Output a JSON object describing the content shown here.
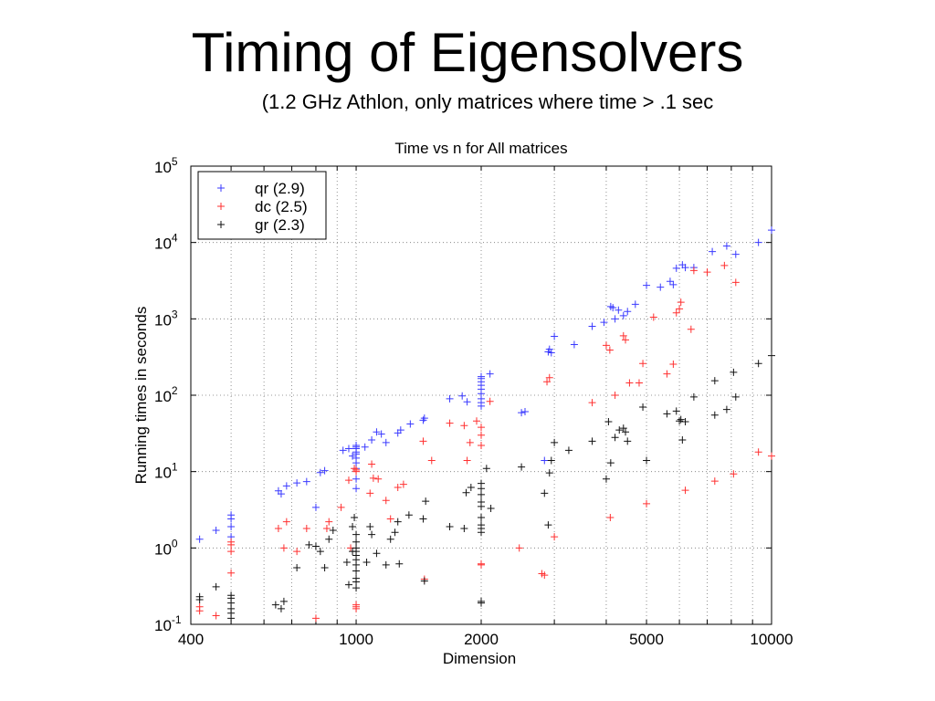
{
  "slide": {
    "title": "Timing of Eigensolvers",
    "subtitle": "(1.2 GHz Athlon, only matrices where time > .1 sec"
  },
  "chart_data": {
    "type": "scatter",
    "title": "Time vs n for All matrices",
    "xlabel": "Dimension",
    "ylabel": "Running times in seconds",
    "xscale": "log",
    "yscale": "log",
    "xlim": [
      400,
      10000
    ],
    "ylim": [
      0.1,
      100000
    ],
    "grid": true,
    "legend_position": "top-left",
    "x_ticks": [
      {
        "value": 400,
        "label": "400"
      },
      {
        "value": 1000,
        "label": "1000"
      },
      {
        "value": 2000,
        "label": "2000"
      },
      {
        "value": 5000,
        "label": "5000"
      },
      {
        "value": 10000,
        "label": "10000"
      }
    ],
    "y_ticks": [
      {
        "value": 0.1,
        "base": "10",
        "exp": "-1"
      },
      {
        "value": 1,
        "base": "10",
        "exp": "0"
      },
      {
        "value": 10,
        "base": "10",
        "exp": "1"
      },
      {
        "value": 100,
        "base": "10",
        "exp": "2"
      },
      {
        "value": 1000,
        "base": "10",
        "exp": "3"
      },
      {
        "value": 10000,
        "base": "10",
        "exp": "4"
      },
      {
        "value": 100000,
        "base": "10",
        "exp": "5"
      }
    ],
    "series": [
      {
        "name": "qr (2.9)",
        "color": "#3a3aff",
        "points": [
          [
            420,
            1.3
          ],
          [
            460,
            1.7
          ],
          [
            500,
            2.7
          ],
          [
            500,
            2.4
          ],
          [
            500,
            1.9
          ],
          [
            500,
            1.4
          ],
          [
            650,
            5.6
          ],
          [
            660,
            5.1
          ],
          [
            680,
            6.5
          ],
          [
            720,
            7.1
          ],
          [
            760,
            7.4
          ],
          [
            800,
            3.4
          ],
          [
            820,
            9.7
          ],
          [
            840,
            10.3
          ],
          [
            930,
            19
          ],
          [
            960,
            20
          ],
          [
            980,
            16
          ],
          [
            1000,
            22
          ],
          [
            1000,
            21
          ],
          [
            1000,
            20
          ],
          [
            1000,
            18
          ],
          [
            1000,
            17
          ],
          [
            1000,
            15
          ],
          [
            1000,
            13
          ],
          [
            1000,
            11
          ],
          [
            1000,
            8
          ],
          [
            1000,
            6
          ],
          [
            1050,
            21
          ],
          [
            1090,
            26
          ],
          [
            1120,
            33
          ],
          [
            1150,
            31
          ],
          [
            1180,
            24
          ],
          [
            1260,
            32
          ],
          [
            1280,
            35
          ],
          [
            1350,
            42
          ],
          [
            1450,
            47
          ],
          [
            1460,
            50
          ],
          [
            1680,
            90
          ],
          [
            1800,
            98
          ],
          [
            1850,
            82
          ],
          [
            2000,
            175
          ],
          [
            2000,
            165
          ],
          [
            2000,
            150
          ],
          [
            2000,
            135
          ],
          [
            2000,
            120
          ],
          [
            2000,
            105
          ],
          [
            2000,
            90
          ],
          [
            2000,
            80
          ],
          [
            2000,
            72
          ],
          [
            2100,
            190
          ],
          [
            2500,
            59
          ],
          [
            2550,
            61
          ],
          [
            2840,
            14
          ],
          [
            2900,
            370
          ],
          [
            2920,
            400
          ],
          [
            2950,
            360
          ],
          [
            3000,
            590
          ],
          [
            3350,
            460
          ],
          [
            3700,
            800
          ],
          [
            3950,
            900
          ],
          [
            4100,
            1450
          ],
          [
            4150,
            1400
          ],
          [
            4200,
            1000
          ],
          [
            4280,
            1300
          ],
          [
            4400,
            1100
          ],
          [
            4500,
            1250
          ],
          [
            4700,
            1550
          ],
          [
            5000,
            2750
          ],
          [
            5400,
            2600
          ],
          [
            5700,
            3100
          ],
          [
            5800,
            2800
          ],
          [
            5900,
            4600
          ],
          [
            6100,
            5100
          ],
          [
            6200,
            4700
          ],
          [
            6500,
            4700
          ],
          [
            7200,
            7600
          ],
          [
            7800,
            9000
          ],
          [
            8200,
            7000
          ],
          [
            9300,
            10000
          ],
          [
            10000,
            14500
          ]
        ]
      },
      {
        "name": "dc (2.5)",
        "color": "#ff3030",
        "points": [
          [
            420,
            0.15
          ],
          [
            420,
            0.17
          ],
          [
            460,
            0.13
          ],
          [
            500,
            1.2
          ],
          [
            500,
            1.1
          ],
          [
            500,
            0.9
          ],
          [
            500,
            0.47
          ],
          [
            650,
            1.8
          ],
          [
            670,
            1.0
          ],
          [
            680,
            2.2
          ],
          [
            720,
            0.9
          ],
          [
            760,
            1.8
          ],
          [
            800,
            0.12
          ],
          [
            850,
            1.8
          ],
          [
            860,
            2.2
          ],
          [
            920,
            3.4
          ],
          [
            960,
            7.7
          ],
          [
            970,
            1.0
          ],
          [
            990,
            11
          ],
          [
            1000,
            10
          ],
          [
            1000,
            10.5
          ],
          [
            1000,
            0.18
          ],
          [
            1000,
            0.17
          ],
          [
            1000,
            0.16
          ],
          [
            1080,
            5.2
          ],
          [
            1090,
            12.5
          ],
          [
            1100,
            8.2
          ],
          [
            1130,
            8
          ],
          [
            1180,
            4.2
          ],
          [
            1210,
            2.4
          ],
          [
            1260,
            6.2
          ],
          [
            1300,
            6.8
          ],
          [
            1450,
            25
          ],
          [
            1460,
            0.39
          ],
          [
            1520,
            14
          ],
          [
            1680,
            43
          ],
          [
            1820,
            40
          ],
          [
            1850,
            14
          ],
          [
            1880,
            24
          ],
          [
            1950,
            46
          ],
          [
            2000,
            38
          ],
          [
            2000,
            30
          ],
          [
            2000,
            22
          ],
          [
            2000,
            0.62
          ],
          [
            2000,
            0.6
          ],
          [
            2100,
            83
          ],
          [
            2470,
            1.0
          ],
          [
            2800,
            0.46
          ],
          [
            2840,
            0.44
          ],
          [
            2880,
            150
          ],
          [
            2920,
            170
          ],
          [
            3000,
            1.4
          ],
          [
            3700,
            80
          ],
          [
            4000,
            450
          ],
          [
            4080,
            390
          ],
          [
            4090,
            2.5
          ],
          [
            4200,
            100
          ],
          [
            4400,
            600
          ],
          [
            4450,
            530
          ],
          [
            4550,
            145
          ],
          [
            4800,
            145
          ],
          [
            4900,
            260
          ],
          [
            5000,
            3.8
          ],
          [
            5200,
            1050
          ],
          [
            5600,
            190
          ],
          [
            5800,
            255
          ],
          [
            5900,
            1200
          ],
          [
            6000,
            1350
          ],
          [
            6050,
            1650
          ],
          [
            6200,
            5.7
          ],
          [
            6400,
            730
          ],
          [
            6500,
            4300
          ],
          [
            7000,
            4100
          ],
          [
            7300,
            7.5
          ],
          [
            7700,
            5000
          ],
          [
            8100,
            9.3
          ],
          [
            8200,
            3000
          ],
          [
            9300,
            18
          ],
          [
            10000,
            16
          ]
        ]
      },
      {
        "name": "gr (2.3)",
        "color": "#111111",
        "points": [
          [
            420,
            0.23
          ],
          [
            420,
            0.21
          ],
          [
            460,
            0.31
          ],
          [
            500,
            0.24
          ],
          [
            500,
            0.22
          ],
          [
            500,
            0.19
          ],
          [
            500,
            0.16
          ],
          [
            500,
            0.14
          ],
          [
            500,
            0.12
          ],
          [
            640,
            0.18
          ],
          [
            660,
            0.16
          ],
          [
            670,
            0.2
          ],
          [
            720,
            0.55
          ],
          [
            770,
            1.1
          ],
          [
            800,
            1.05
          ],
          [
            820,
            0.9
          ],
          [
            840,
            0.55
          ],
          [
            860,
            1.3
          ],
          [
            880,
            1.7
          ],
          [
            950,
            0.65
          ],
          [
            960,
            0.33
          ],
          [
            980,
            0.9
          ],
          [
            980,
            1.9
          ],
          [
            990,
            2.5
          ],
          [
            1000,
            1.5
          ],
          [
            1000,
            1.2
          ],
          [
            1000,
            1.0
          ],
          [
            1000,
            0.9
          ],
          [
            1000,
            0.8
          ],
          [
            1000,
            0.7
          ],
          [
            1000,
            0.6
          ],
          [
            1000,
            0.5
          ],
          [
            1000,
            0.4
          ],
          [
            1000,
            0.36
          ],
          [
            1000,
            0.3
          ],
          [
            1060,
            0.65
          ],
          [
            1080,
            1.9
          ],
          [
            1090,
            1.5
          ],
          [
            1120,
            0.85
          ],
          [
            1180,
            0.6
          ],
          [
            1210,
            1.3
          ],
          [
            1240,
            1.6
          ],
          [
            1260,
            2.2
          ],
          [
            1270,
            0.62
          ],
          [
            1340,
            2.7
          ],
          [
            1450,
            2.4
          ],
          [
            1460,
            0.37
          ],
          [
            1470,
            4.1
          ],
          [
            1680,
            1.9
          ],
          [
            1820,
            1.8
          ],
          [
            1840,
            5.3
          ],
          [
            1890,
            6.2
          ],
          [
            2000,
            7
          ],
          [
            2000,
            6
          ],
          [
            2000,
            5
          ],
          [
            2000,
            4
          ],
          [
            2000,
            3.5
          ],
          [
            2000,
            2.5
          ],
          [
            2000,
            2
          ],
          [
            2000,
            1.8
          ],
          [
            2000,
            1.6
          ],
          [
            2000,
            0.2
          ],
          [
            2000,
            0.19
          ],
          [
            2060,
            11
          ],
          [
            2110,
            3.3
          ],
          [
            2500,
            11.5
          ],
          [
            2840,
            5.2
          ],
          [
            2900,
            2
          ],
          [
            2920,
            9.6
          ],
          [
            2950,
            14
          ],
          [
            3000,
            24
          ],
          [
            3250,
            19
          ],
          [
            3700,
            25
          ],
          [
            4000,
            8
          ],
          [
            4050,
            45
          ],
          [
            4100,
            13
          ],
          [
            4200,
            28
          ],
          [
            4300,
            35
          ],
          [
            4400,
            37
          ],
          [
            4450,
            33
          ],
          [
            4500,
            25
          ],
          [
            4900,
            70
          ],
          [
            5000,
            14
          ],
          [
            5600,
            57
          ],
          [
            5900,
            62
          ],
          [
            6000,
            46
          ],
          [
            6050,
            48
          ],
          [
            6100,
            26
          ],
          [
            6200,
            45
          ],
          [
            6500,
            95
          ],
          [
            7300,
            55
          ],
          [
            7300,
            155
          ],
          [
            7800,
            65
          ],
          [
            8100,
            200
          ],
          [
            8200,
            95
          ],
          [
            9300,
            260
          ],
          [
            10000,
            330
          ]
        ]
      }
    ]
  }
}
